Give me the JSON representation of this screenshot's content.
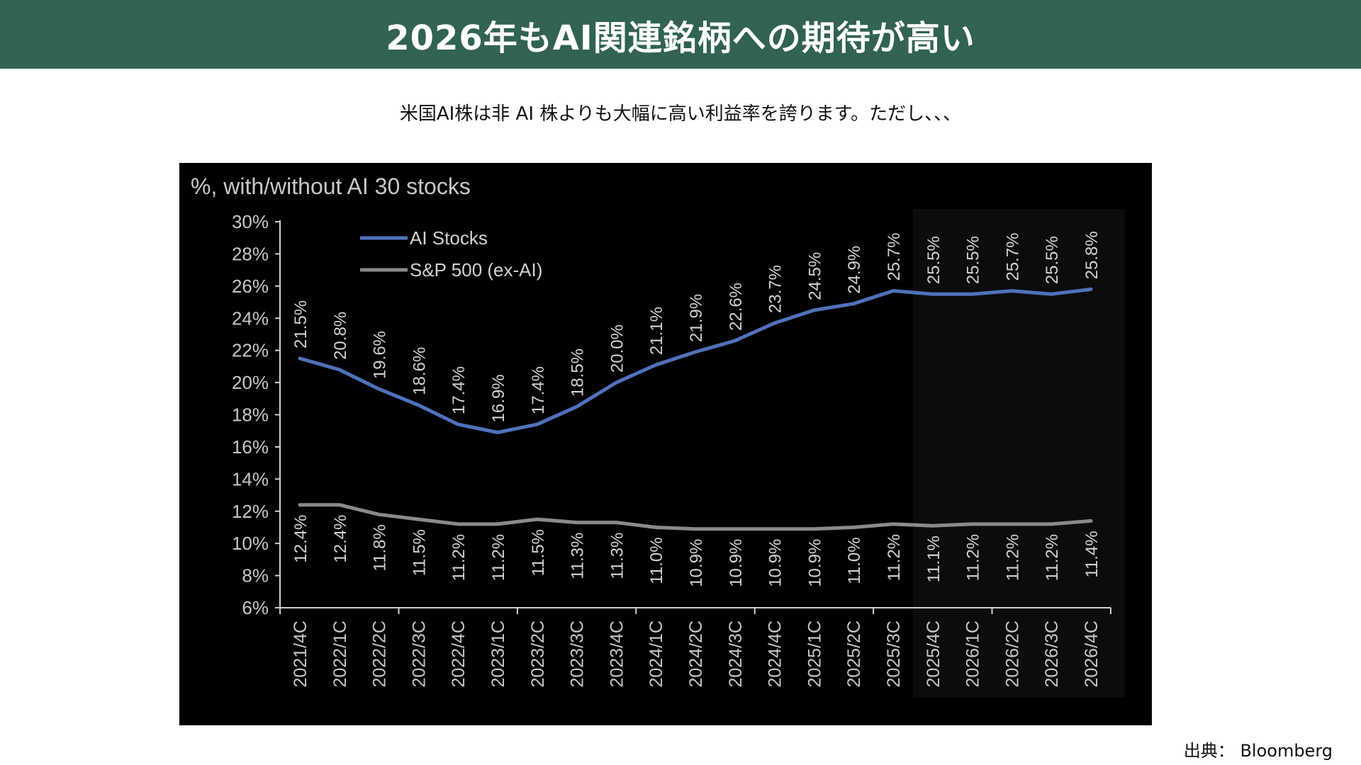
{
  "header": {
    "title": "2026年もAI関連銘柄への期待が高い"
  },
  "subtitle": "米国AI株は非 AI 株よりも大幅に高い利益率を誇ります。ただし、、、",
  "source": "出典： Bloomberg",
  "colors": {
    "header_bg": "#316350",
    "ai_series": "#4f72bb",
    "sp_series": "#8a8a8a",
    "chart_bg": "#000000",
    "forecast_bg": "#0c0c0c"
  },
  "chart_data": {
    "type": "line",
    "title": "%, with/without AI 30 stocks",
    "xlabel": "",
    "ylabel": "",
    "ylim": [
      6,
      30
    ],
    "yticks": [
      "30%",
      "28%",
      "26%",
      "24%",
      "22%",
      "20%",
      "18%",
      "16%",
      "14%",
      "12%",
      "10%",
      "8%",
      "6%"
    ],
    "categories": [
      "2021/4C",
      "2022/1C",
      "2022/2C",
      "2022/3C",
      "2022/4C",
      "2023/1C",
      "2023/2C",
      "2023/3C",
      "2023/4C",
      "2024/1C",
      "2024/2C",
      "2024/3C",
      "2024/4C",
      "2025/1C",
      "2025/2C",
      "2025/3C",
      "2025/4C",
      "2026/1C",
      "2026/2C",
      "2026/3C",
      "2026/4C"
    ],
    "forecast_start_index": 16,
    "legend_position": "top-left",
    "series": [
      {
        "name": "AI Stocks",
        "values": [
          21.5,
          20.8,
          19.6,
          18.6,
          17.4,
          16.9,
          17.4,
          18.5,
          20.0,
          21.1,
          21.9,
          22.6,
          23.7,
          24.5,
          24.9,
          25.7,
          25.5,
          25.5,
          25.7,
          25.5,
          25.8
        ],
        "labels": [
          "21.5%",
          "20.8%",
          "19.6%",
          "18.6%",
          "17.4%",
          "16.9%",
          "17.4%",
          "18.5%",
          "20.0%",
          "21.1%",
          "21.9%",
          "22.6%",
          "23.7%",
          "24.5%",
          "24.9%",
          "25.7%",
          "25.5%",
          "25.5%",
          "25.7%",
          "25.5%",
          "25.8%"
        ]
      },
      {
        "name": "S&P 500 (ex-AI)",
        "values": [
          12.4,
          12.4,
          11.8,
          11.5,
          11.2,
          11.2,
          11.5,
          11.3,
          11.3,
          11.0,
          10.9,
          10.9,
          10.9,
          10.9,
          11.0,
          11.2,
          11.1,
          11.2,
          11.2,
          11.2,
          11.4
        ],
        "labels": [
          "12.4%",
          "12.4%",
          "11.8%",
          "11.5%",
          "11.2%",
          "11.2%",
          "11.5%",
          "11.3%",
          "11.3%",
          "11.0%",
          "10.9%",
          "10.9%",
          "10.9%",
          "10.9%",
          "11.0%",
          "11.2%",
          "11.1%",
          "11.2%",
          "11.2%",
          "11.2%",
          "11.4%"
        ]
      }
    ]
  }
}
